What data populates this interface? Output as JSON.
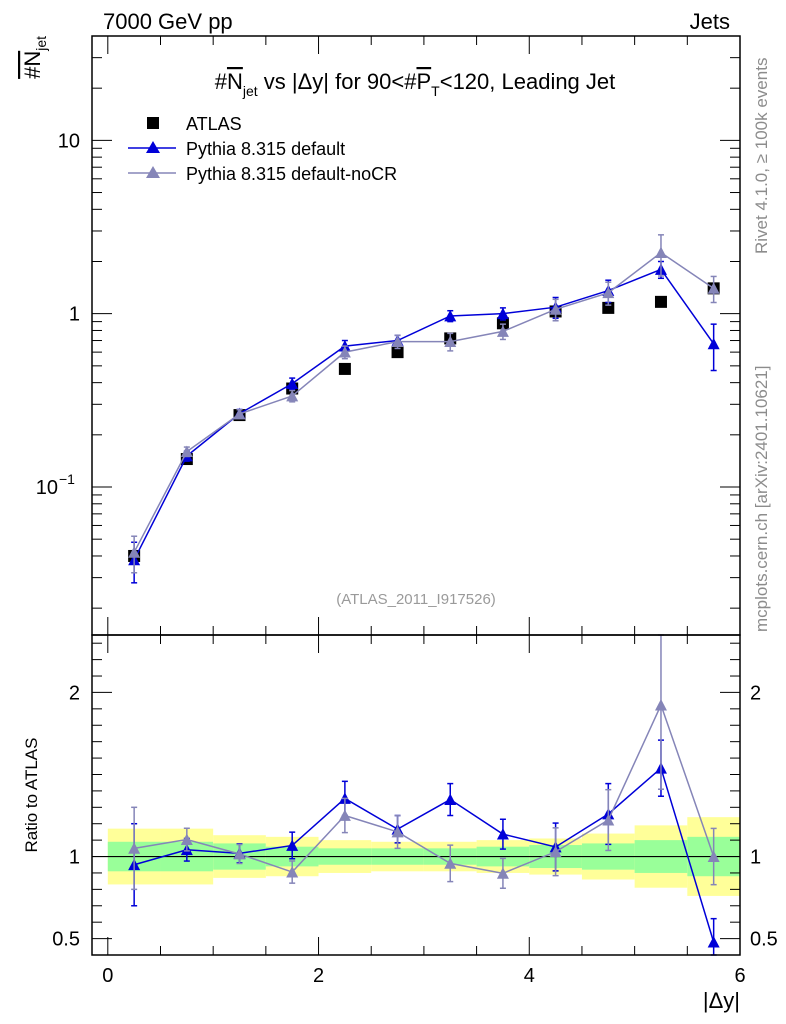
{
  "header": {
    "energy_label": "7000 GeV pp",
    "category_label": "Jets"
  },
  "side_text": {
    "rivet": "Rivet 4.1.0, ≥ 100k events",
    "mcplots": "mcplots.cern.ch [arXiv:2401.10621]"
  },
  "watermark": "(ATLAS_2011_I917526)",
  "colors": {
    "data": "#000000",
    "pythia_default": "#0000d8",
    "pythia_nocr": "#8585b8",
    "band_inner": "#99ff99",
    "band_outer": "#ffff99"
  },
  "chart_data": {
    "type": "scatter",
    "title": "#Njet vs |Δy| for 90<#PT<120, Leading Jet",
    "title_parts": {
      "lead": "#",
      "n": "N",
      "n_sub": "jet",
      "mid": " vs |Δy| for 90<#",
      "p": "P",
      "p_sub": "T",
      "tail": "<120, Leading Jet"
    },
    "ylabel": {
      "main": "#N",
      "sub": "jet"
    },
    "ratio_ylabel": "Ratio to ATLAS",
    "xlabel": "|Δy|",
    "xlim": [
      -0.15,
      6.0
    ],
    "ylim": [
      0.014,
      40
    ],
    "yscale": "log",
    "ratio_ylim": [
      0.4,
      2.35
    ],
    "x_ticks": [
      {
        "value": 0,
        "label": "0"
      },
      {
        "value": 2,
        "label": "2"
      },
      {
        "value": 4,
        "label": "4"
      },
      {
        "value": 6,
        "label": "6"
      }
    ],
    "y_ticks": [
      {
        "value": 10,
        "label": "10"
      },
      {
        "value": 1,
        "label": "1"
      },
      {
        "value": 0.1,
        "label": "10",
        "exp": "−1"
      }
    ],
    "ratio_ticks": [
      {
        "value": 2,
        "label": "2"
      },
      {
        "value": 1,
        "label": "1"
      },
      {
        "value": 0.5,
        "label": "0.5"
      }
    ],
    "legend": [
      {
        "label": "ATLAS",
        "series": "data"
      },
      {
        "label": "Pythia 8.315 default",
        "series": "pythia_default"
      },
      {
        "label": "Pythia 8.315 default-noCR",
        "series": "pythia_nocr"
      }
    ],
    "bins": [
      0.25,
      0.75,
      1.25,
      1.75,
      2.25,
      2.75,
      3.25,
      3.75,
      4.25,
      4.75,
      5.25,
      5.75
    ],
    "bin_edges": [
      0,
      0.5,
      1,
      1.5,
      2,
      2.5,
      3,
      3.5,
      4,
      4.5,
      5,
      5.5,
      6
    ],
    "data": {
      "name": "ATLAS",
      "values": [
        0.04,
        0.145,
        0.26,
        0.37,
        0.48,
        0.6,
        0.72,
        0.88,
        1.03,
        1.08,
        1.17,
        1.4
      ]
    },
    "band_inner": [
      0.09,
      0.09,
      0.08,
      0.06,
      0.05,
      0.05,
      0.05,
      0.06,
      0.07,
      0.08,
      0.1,
      0.12
    ],
    "band_outer": [
      0.17,
      0.17,
      0.13,
      0.12,
      0.1,
      0.09,
      0.09,
      0.1,
      0.11,
      0.14,
      0.19,
      0.24
    ],
    "series": [
      {
        "name": "Pythia 8.315 default",
        "key": "pythia_default",
        "values": [
          0.038,
          0.151,
          0.265,
          0.395,
          0.65,
          0.7,
          0.97,
          1.0,
          1.09,
          1.36,
          1.8,
          0.67
        ],
        "errors": [
          0.01,
          0.01,
          0.015,
          0.03,
          0.05,
          0.05,
          0.07,
          0.08,
          0.15,
          0.2,
          0.2,
          0.2
        ]
      },
      {
        "name": "Pythia 8.315 default-noCR",
        "key": "pythia_nocr",
        "values": [
          0.042,
          0.16,
          0.264,
          0.335,
          0.6,
          0.69,
          0.69,
          0.79,
          1.06,
          1.32,
          2.25,
          1.4
        ],
        "errors": [
          0.01,
          0.01,
          0.015,
          0.025,
          0.05,
          0.06,
          0.08,
          0.08,
          0.15,
          0.2,
          0.6,
          0.24
        ]
      }
    ]
  }
}
